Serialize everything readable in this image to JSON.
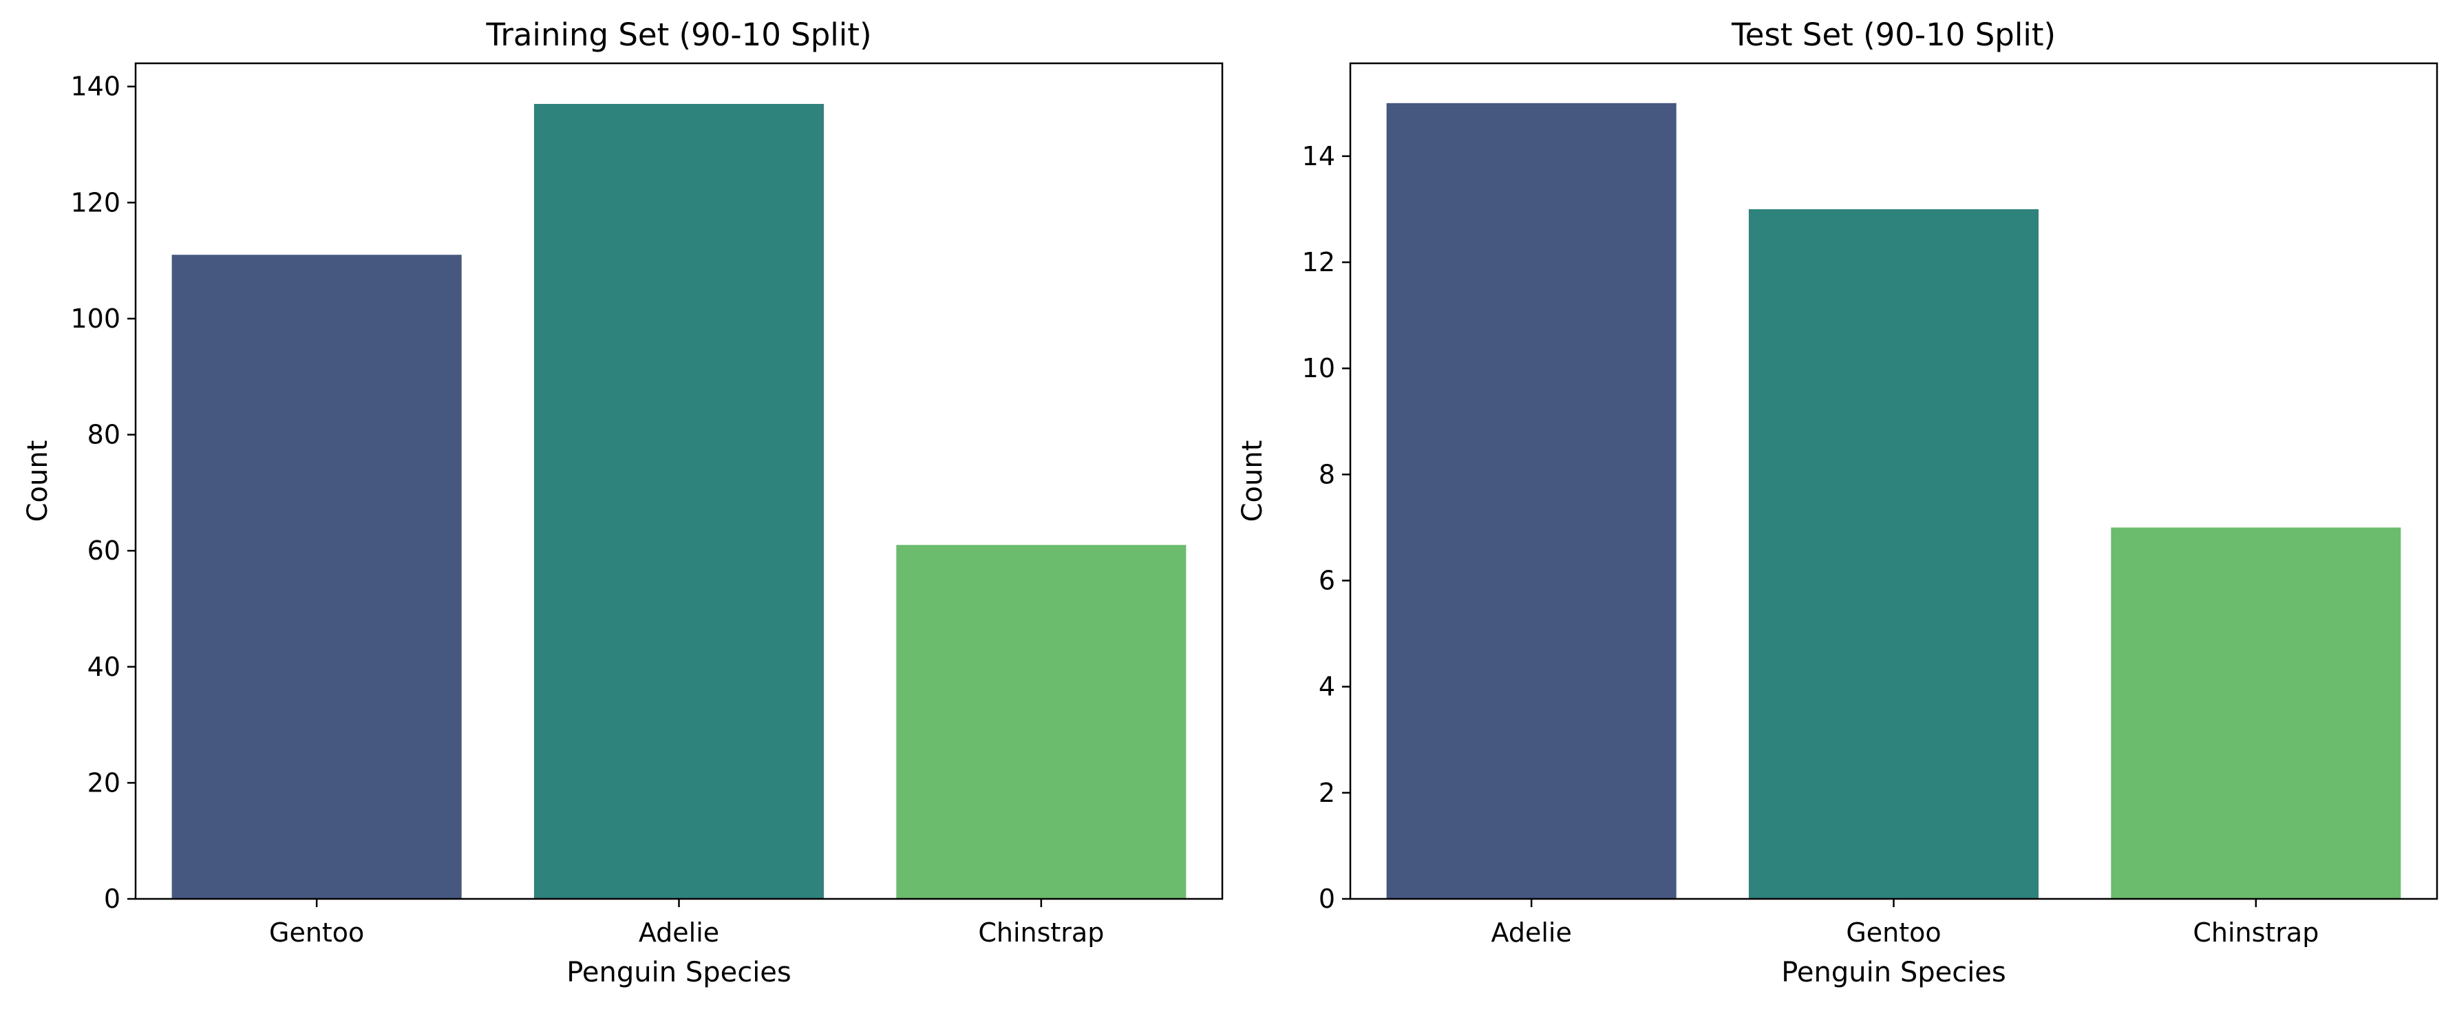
{
  "chart_data": [
    {
      "type": "bar",
      "title": "Training Set (90-10 Split)",
      "xlabel": "Penguin Species",
      "ylabel": "Count",
      "categories": [
        "Gentoo",
        "Adelie",
        "Chinstrap"
      ],
      "values": [
        111,
        137,
        61
      ],
      "colors": [
        "#46587f",
        "#2e837c",
        "#6cbc6e"
      ],
      "ylim": [
        0,
        144
      ],
      "yticks": [
        0,
        20,
        40,
        60,
        80,
        100,
        120,
        140
      ],
      "grid": false,
      "legend": "none"
    },
    {
      "type": "bar",
      "title": "Test Set (90-10 Split)",
      "xlabel": "Penguin Species",
      "ylabel": "Count",
      "categories": [
        "Adelie",
        "Gentoo",
        "Chinstrap"
      ],
      "values": [
        15,
        13,
        7
      ],
      "colors": [
        "#46587f",
        "#2e837c",
        "#6cbc6e"
      ],
      "ylim": [
        0,
        15.75
      ],
      "yticks": [
        0,
        2,
        4,
        6,
        8,
        10,
        12,
        14
      ],
      "grid": false,
      "legend": "none"
    }
  ]
}
